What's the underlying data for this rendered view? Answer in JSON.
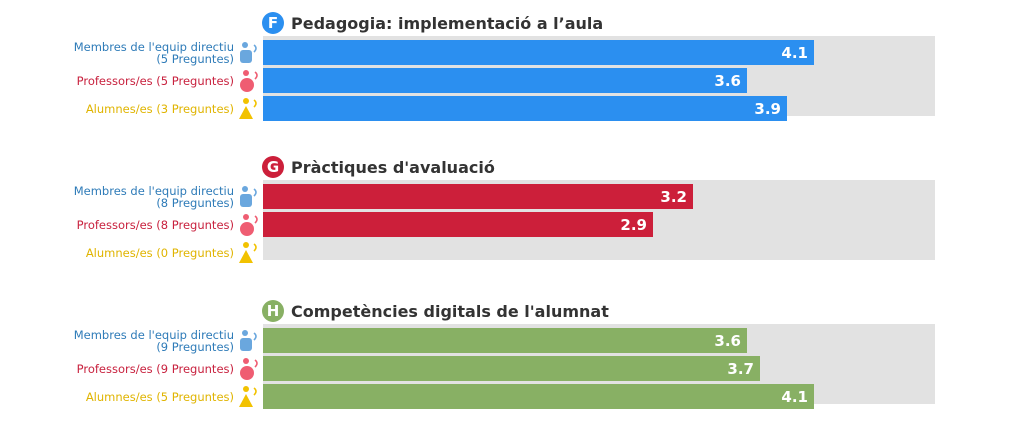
{
  "chart_data": {
    "type": "bar",
    "orientation": "horizontal",
    "xlim": [
      0,
      5
    ],
    "groups": [
      {
        "letter": "F",
        "title": "Pedagogia: implementació a l’aula",
        "color": "#2b8ff0",
        "rows": [
          {
            "line1": "Membres de l'equip directiu",
            "line2": "(5 Preguntes)",
            "value": 4.1,
            "value_label": "4.1",
            "role": "leader"
          },
          {
            "line1": "Professors/es (5 Preguntes)",
            "line2": "",
            "value": 3.6,
            "value_label": "3.6",
            "role": "teacher"
          },
          {
            "line1": "Alumnes/es (3 Preguntes)",
            "line2": "",
            "value": 3.9,
            "value_label": "3.9",
            "role": "student"
          }
        ]
      },
      {
        "letter": "G",
        "title": "Pràctiques d'avaluació",
        "color": "#cc1f3a",
        "rows": [
          {
            "line1": "Membres de l'equip directiu",
            "line2": "(8 Preguntes)",
            "value": 3.2,
            "value_label": "3.2",
            "role": "leader"
          },
          {
            "line1": "Professors/es (8 Preguntes)",
            "line2": "",
            "value": 2.9,
            "value_label": "2.9",
            "role": "teacher"
          },
          {
            "line1": "Alumnes/es (0 Preguntes)",
            "line2": "",
            "value": null,
            "value_label": "",
            "role": "student"
          }
        ]
      },
      {
        "letter": "H",
        "title": "Competències digitals de l'alumnat",
        "color": "#88b064",
        "rows": [
          {
            "line1": "Membres de l'equip directiu",
            "line2": "(9 Preguntes)",
            "value": 3.6,
            "value_label": "3.6",
            "role": "leader"
          },
          {
            "line1": "Professors/es (9 Preguntes)",
            "line2": "",
            "value": 3.7,
            "value_label": "3.7",
            "role": "teacher"
          },
          {
            "line1": "Alumnes/es (5 Preguntes)",
            "line2": "",
            "value": 4.1,
            "value_label": "4.1",
            "role": "student"
          }
        ]
      }
    ]
  },
  "role_colors": {
    "leader": "#2e7bb8",
    "teacher": "#c8213e",
    "student": "#e0b400"
  },
  "role_icon_colors": {
    "leader": "#6aa7de",
    "teacher": "#ef5d72",
    "student": "#f2c200"
  },
  "role_icons": {
    "leader": "leader-person-icon",
    "teacher": "teacher-person-icon",
    "student": "student-person-icon"
  },
  "track_color": "#e2e2e2"
}
